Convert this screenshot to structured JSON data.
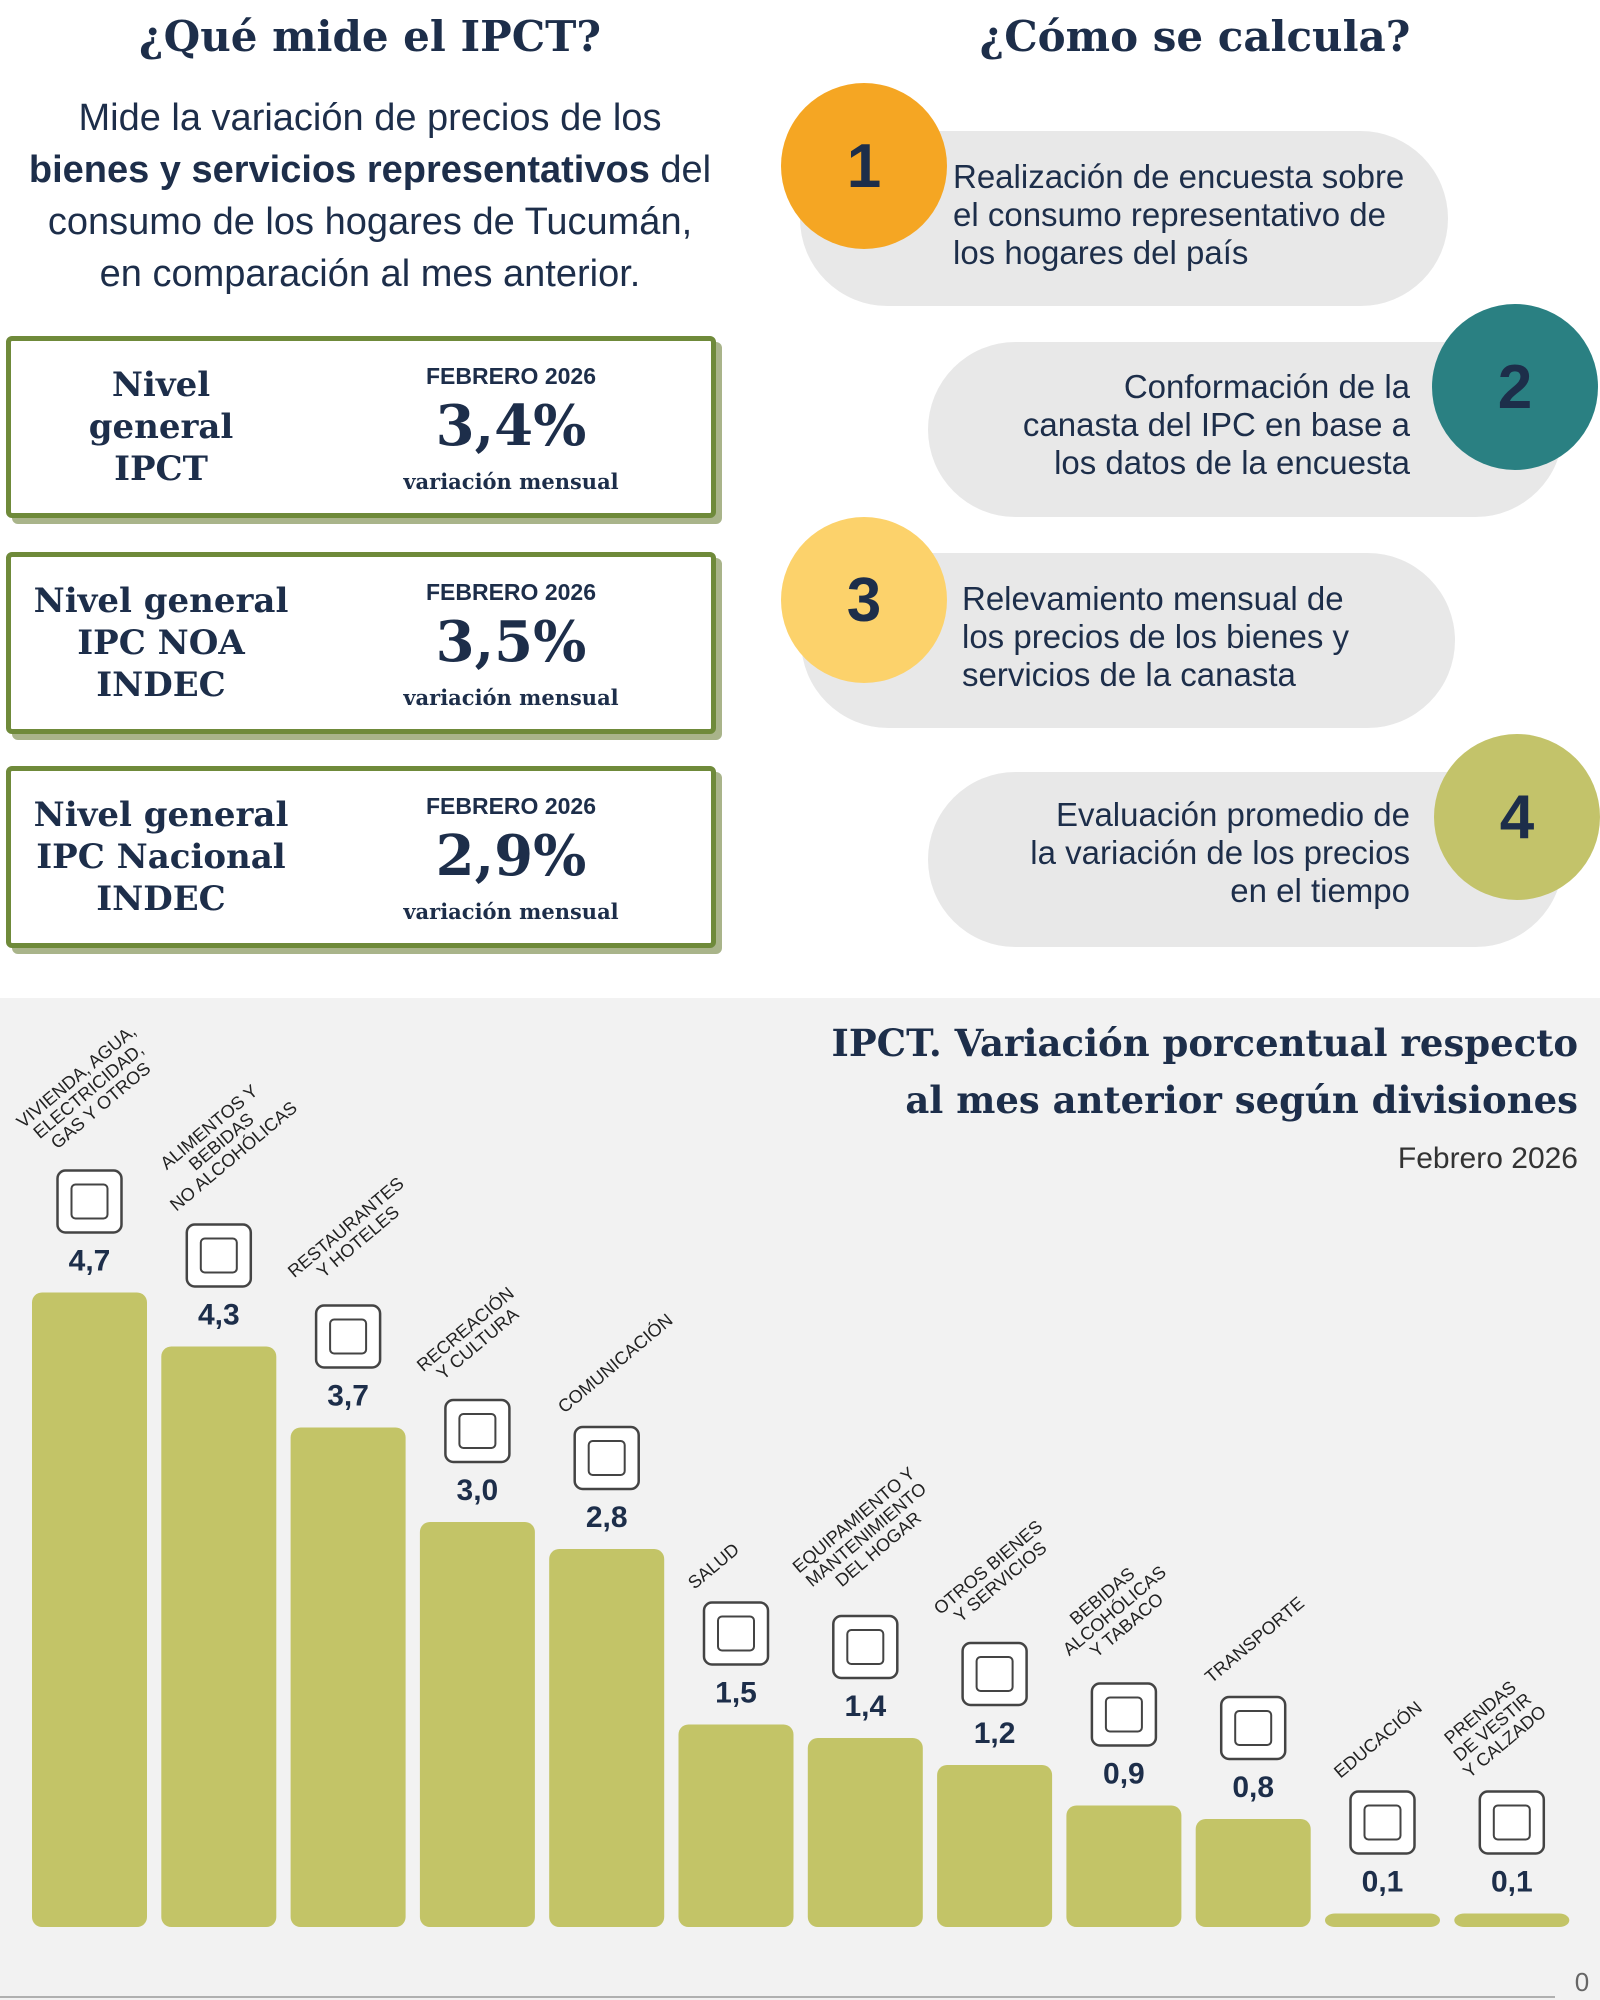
{
  "left": {
    "title": "¿Qué mide el IPCT?",
    "description": {
      "before": "Mide la variación de precios de los\n",
      "bold": "bienes y servicios representativos",
      "after": " del\nconsumo de los hogares de Tucumán,\nen comparación al mes anterior."
    }
  },
  "cards": [
    {
      "title": "Nivel\ngeneral\nIPCT",
      "period": "FEBRERO 2026",
      "value": "3,4%",
      "note": "variación mensual"
    },
    {
      "title": "Nivel general\nIPC NOA\nINDEC",
      "period": "FEBRERO 2026",
      "value": "3,5%",
      "note": "variación mensual"
    },
    {
      "title": "Nivel general\nIPC Nacional\nINDEC",
      "period": "FEBRERO 2026",
      "value": "2,9%",
      "note": "variación mensual"
    }
  ],
  "right": {
    "title": "¿Cómo se calcula?",
    "steps": [
      {
        "number": "1",
        "text": "Realización de encuesta sobre\nel consumo representativo de\nlos hogares del país"
      },
      {
        "number": "2",
        "text": "Conformación de la\ncanasta del IPC en base a\nlos datos de la encuesta"
      },
      {
        "number": "3",
        "text": "Relevamiento mensual de\nlos precios de los bienes y\nservicios de la canasta"
      },
      {
        "number": "4",
        "text": "Evaluación promedio de\nla variación de los precios\nen el tiempo"
      }
    ]
  },
  "chart_data": {
    "type": "bar",
    "title": "IPCT. Variación porcentual respecto\nal mes anterior según divisiones",
    "subtitle": "Febrero 2026",
    "categories": [
      "VIVIENDA, AGUA,\nELECTRICIDAD,\nGAS Y OTROS",
      "ALIMENTOS Y\nBEBIDAS\nNO ALCOHÓLICAS",
      "RESTAURANTES\nY HOTELES",
      "RECREACIÓN\nY CULTURA",
      "COMUNICACIÓN",
      "SALUD",
      "EQUIPAMIENTO Y\nMANTENIMIENTO\nDEL HOGAR",
      "OTROS BIENES\nY SERVICIOS",
      "BEBIDAS\nALCOHÓLICAS\nY TABACO",
      "TRANSPORTE",
      "EDUCACIÓN",
      "PRENDAS\nDE VESTIR\nY CALZADO"
    ],
    "values": [
      4.7,
      4.3,
      3.7,
      3.0,
      2.8,
      1.5,
      1.4,
      1.2,
      0.9,
      0.8,
      0.1,
      0.1
    ],
    "value_labels": [
      "4,7",
      "4,3",
      "3,7",
      "3,0",
      "2,8",
      "1,5",
      "1,4",
      "1,2",
      "0,9",
      "0,8",
      "0,1",
      "0,1"
    ],
    "color": "#c3c467",
    "ylim": [
      0,
      5
    ],
    "yticks": [
      0
    ],
    "grid": false
  }
}
